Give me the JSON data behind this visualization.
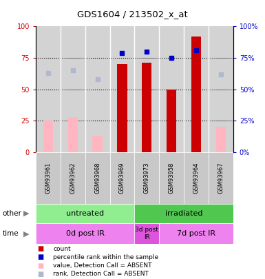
{
  "title": "GDS1604 / 213502_x_at",
  "samples": [
    "GSM93961",
    "GSM93962",
    "GSM93968",
    "GSM93969",
    "GSM93973",
    "GSM93958",
    "GSM93964",
    "GSM93967"
  ],
  "count_values": [
    null,
    null,
    null,
    70,
    71,
    50,
    92,
    null
  ],
  "absent_value_bars": [
    25,
    28,
    13,
    null,
    null,
    null,
    null,
    20
  ],
  "rank_dots_blue": [
    null,
    null,
    null,
    79,
    80,
    75,
    81,
    null
  ],
  "rank_dots_absent": [
    63,
    65,
    58,
    null,
    null,
    null,
    null,
    62
  ],
  "other_groups": [
    {
      "label": "untreated",
      "start": 0,
      "end": 4,
      "color": "#90ee90"
    },
    {
      "label": "irradiated",
      "start": 4,
      "end": 8,
      "color": "#50c850"
    }
  ],
  "time_groups": [
    {
      "label": "0d post IR",
      "start": 0,
      "end": 4,
      "color": "#ee82ee"
    },
    {
      "label": "3d post\nIR",
      "start": 4,
      "end": 5,
      "color": "#dd55dd"
    },
    {
      "label": "7d post IR",
      "start": 5,
      "end": 8,
      "color": "#ee82ee"
    }
  ],
  "ylim": [
    0,
    100
  ],
  "yticks": [
    0,
    25,
    50,
    75,
    100
  ],
  "left_ylabel_color": "#cc0000",
  "right_ylabel_color": "#0000cc",
  "bar_width": 0.4,
  "plot_bg": "#d3d3d3",
  "label_bg": "#c8c8c8",
  "legend_items": [
    {
      "color": "#cc0000",
      "label": "count"
    },
    {
      "color": "#0000cc",
      "label": "percentile rank within the sample"
    },
    {
      "color": "#ffb6c1",
      "label": "value, Detection Call = ABSENT"
    },
    {
      "color": "#b0b8d0",
      "label": "rank, Detection Call = ABSENT"
    }
  ]
}
